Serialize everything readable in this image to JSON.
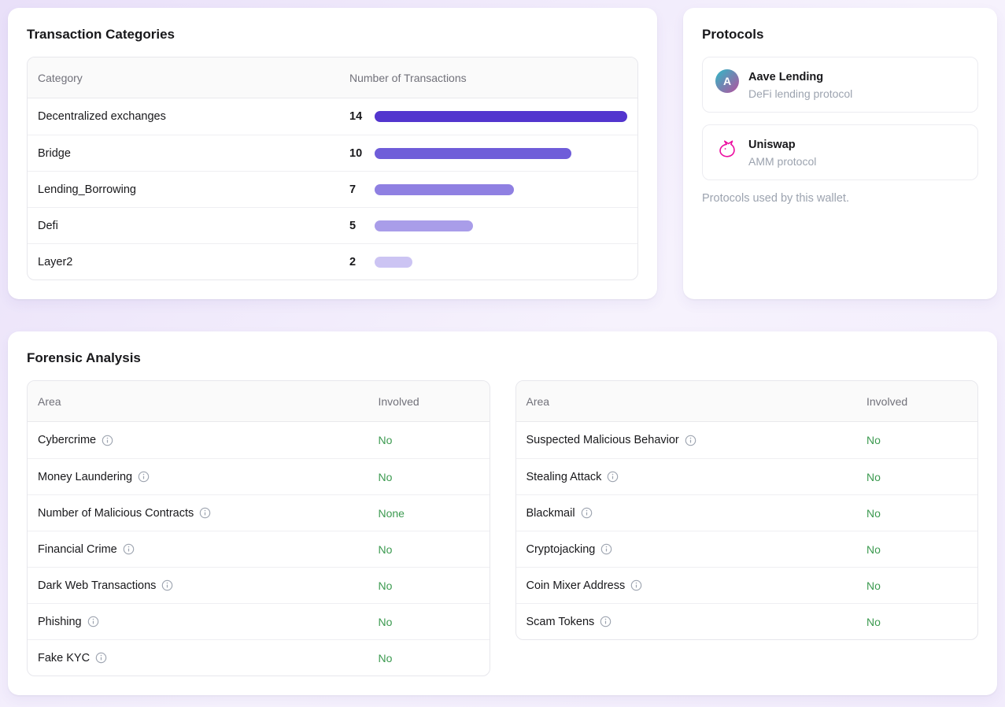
{
  "theme": {
    "page_bg_start": "#e9e0f9",
    "page_bg_end": "#f6f2fd",
    "green": "#3c9a50"
  },
  "transaction_categories": {
    "title": "Transaction Categories",
    "columns": {
      "category": "Category",
      "count": "Number of Transactions"
    },
    "max_count": 14,
    "rows": [
      {
        "category": "Decentralized exchanges",
        "count": "14",
        "bar_pct": 100,
        "bar_color": "#5335ce"
      },
      {
        "category": "Bridge",
        "count": "10",
        "bar_pct": 78,
        "bar_color": "#6f5dd9"
      },
      {
        "category": "Lending_Borrowing",
        "count": "7",
        "bar_pct": 55,
        "bar_color": "#8f80e2"
      },
      {
        "category": "Defi",
        "count": "5",
        "bar_pct": 39,
        "bar_color": "#a99de9"
      },
      {
        "category": "Layer2",
        "count": "2",
        "bar_pct": 15,
        "bar_color": "#ccc4f3"
      }
    ]
  },
  "protocols": {
    "title": "Protocols",
    "items": [
      {
        "name": "Aave Lending",
        "description": "DeFi lending protocol",
        "icon": "aave-icon",
        "icon_letter": "A"
      },
      {
        "name": "Uniswap",
        "description": "AMM protocol",
        "icon": "uniswap-unicorn-icon"
      }
    ],
    "caption": "Protocols used by this wallet."
  },
  "forensic": {
    "title": "Forensic Analysis",
    "columns": {
      "area": "Area",
      "involved": "Involved"
    },
    "tables": [
      {
        "rows": [
          {
            "label": "Cybercrime",
            "value": "No"
          },
          {
            "label": "Money Laundering",
            "value": "No"
          },
          {
            "label": "Number of Malicious Contracts",
            "value": "None"
          },
          {
            "label": "Financial Crime",
            "value": "No"
          },
          {
            "label": "Dark Web Transactions",
            "value": "No"
          },
          {
            "label": "Phishing",
            "value": "No"
          },
          {
            "label": "Fake KYC",
            "value": "No"
          }
        ]
      },
      {
        "rows": [
          {
            "label": "Suspected Malicious Behavior",
            "value": "No"
          },
          {
            "label": "Stealing Attack",
            "value": "No"
          },
          {
            "label": "Blackmail",
            "value": "No"
          },
          {
            "label": "Cryptojacking",
            "value": "No"
          },
          {
            "label": "Coin Mixer Address",
            "value": "No"
          },
          {
            "label": "Scam Tokens",
            "value": "No"
          }
        ]
      }
    ]
  }
}
